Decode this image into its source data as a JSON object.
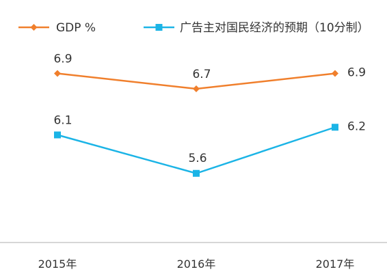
{
  "chart_data": {
    "type": "line",
    "categories": [
      "2015年",
      "2016年",
      "2017年"
    ],
    "series": [
      {
        "name": "GDP %",
        "values": [
          6.9,
          6.7,
          6.9
        ],
        "color": "#F07F2C",
        "marker": "diamond"
      },
      {
        "name": "广告主对国民经济的预期（10分制）",
        "values": [
          6.1,
          5.6,
          6.2
        ],
        "color": "#1BB4E6",
        "marker": "square"
      }
    ],
    "title": "",
    "xlabel": "",
    "ylabel": "",
    "ylim": [
      4.7,
      7.5
    ],
    "grid": false,
    "legend_position": "top-left",
    "data_labels": true
  }
}
